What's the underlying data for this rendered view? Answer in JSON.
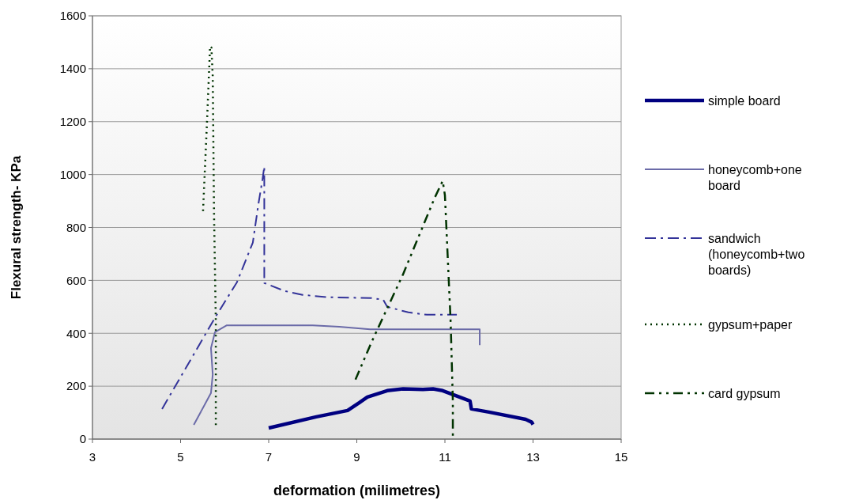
{
  "chart_data": {
    "type": "line",
    "xlabel": "deformation (milimetres)",
    "ylabel": "Flexural strength- KPa",
    "xlim": [
      3,
      15
    ],
    "xticks": [
      3,
      5,
      7,
      9,
      11,
      13,
      15
    ],
    "ylim": [
      0,
      1600
    ],
    "yticks": [
      0,
      200,
      400,
      600,
      800,
      1000,
      1200,
      1400,
      1600
    ],
    "grid": "y",
    "legend": "right",
    "series": [
      {
        "name": "simple board",
        "color": "#000080",
        "line_style": "solid",
        "x": [
          7.0,
          8.08,
          8.79,
          9.06,
          9.24,
          9.69,
          10.05,
          10.5,
          10.73,
          10.95,
          11.57,
          11.6,
          12.0,
          12.83,
          12.97,
          13.0
        ],
        "values": [
          42,
          84,
          108,
          138,
          159,
          183,
          190,
          188,
          190,
          183,
          144,
          114,
          102,
          75,
          64,
          55
        ]
      },
      {
        "name": "honeycomb+one board",
        "color": "#6b6ba8",
        "line_style": "solid",
        "x": [
          5.3,
          5.69,
          5.73,
          5.69,
          5.78,
          6.05,
          7.0,
          8.0,
          8.6,
          9.3,
          10.5,
          11.79,
          11.79
        ],
        "values": [
          54,
          174,
          245,
          344,
          404,
          430,
          430,
          430,
          425,
          415,
          415,
          415,
          355
        ]
      },
      {
        "name": "sandwich (honeycomb+two boards)",
        "color": "#333399",
        "line_style": "dashdot",
        "x": [
          4.58,
          5.8,
          6.28,
          6.64,
          6.77,
          6.86,
          6.9,
          6.9,
          7.36,
          7.77,
          8.38,
          9.33,
          9.6,
          9.69,
          10.17,
          10.59,
          11.27
        ],
        "values": [
          114,
          464,
          593,
          743,
          892,
          982,
          1030,
          590,
          560,
          545,
          536,
          533,
          527,
          500,
          479,
          470,
          470
        ]
      },
      {
        "name": "gypsum+paper",
        "color": "#003300",
        "line_style": "dotted",
        "x": [
          5.51,
          5.6,
          5.67,
          5.7,
          5.73,
          5.76,
          5.8,
          5.8
        ],
        "values": [
          862,
          1200,
          1485,
          1480,
          1371,
          844,
          443,
          45
        ]
      },
      {
        "name": "card gypsum",
        "color": "#003300",
        "line_style": "dashdotdot",
        "x": [
          8.97,
          9.33,
          10.05,
          10.77,
          10.95,
          11.0,
          11.07,
          11.13,
          11.18,
          11.18
        ],
        "values": [
          225,
          365,
          623,
          913,
          976,
          922,
          665,
          443,
          144,
          10
        ]
      }
    ]
  }
}
